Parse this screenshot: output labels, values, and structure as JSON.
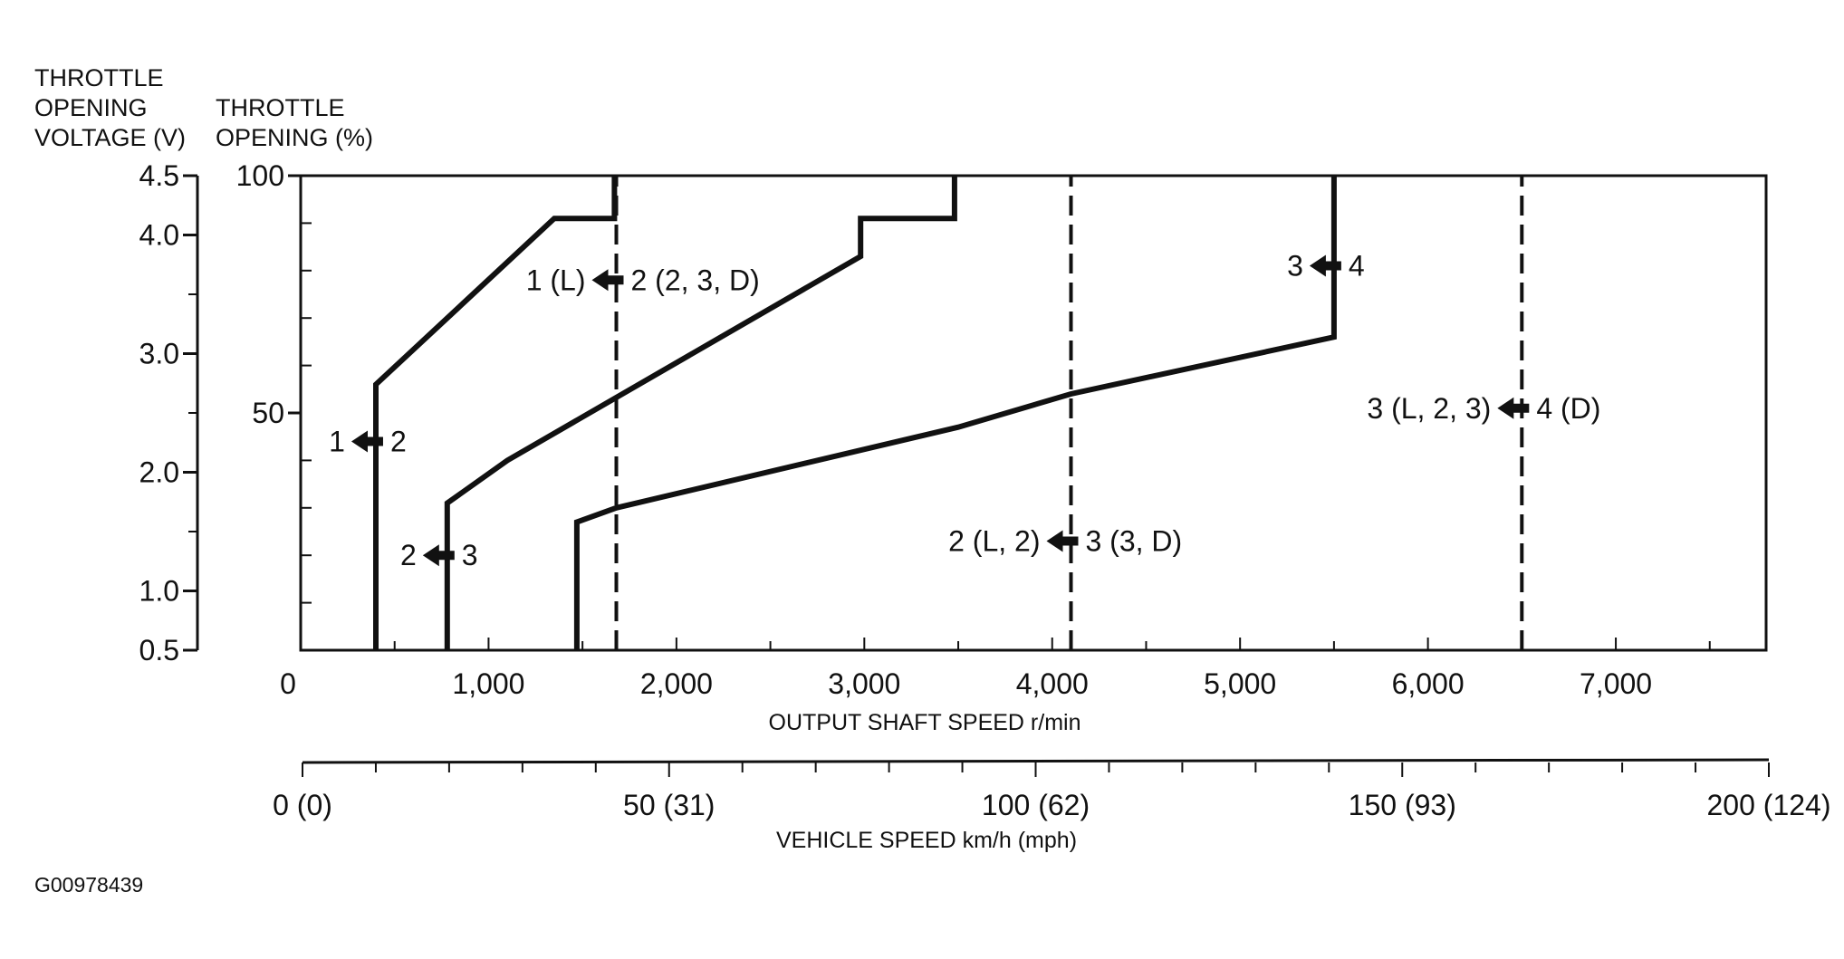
{
  "figure_id": "G00978439",
  "chart_data": {
    "type": "line",
    "title": "",
    "y_axis_left": {
      "title_lines": [
        "THROTTLE",
        "OPENING",
        "VOLTAGE (V)"
      ],
      "ticks": [
        {
          "value": 4.5,
          "label": "4.5"
        },
        {
          "value": 4.0,
          "label": "4.0"
        },
        {
          "value": 3.0,
          "label": "3.0"
        },
        {
          "value": 2.0,
          "label": "2.0"
        },
        {
          "value": 1.0,
          "label": "1.0"
        },
        {
          "value": 0.5,
          "label": "0.5"
        }
      ],
      "minor_ticks": [
        3.5,
        2.5,
        1.5
      ],
      "range": [
        0.5,
        4.5
      ]
    },
    "y_axis_right": {
      "title_lines": [
        "THROTTLE",
        "OPENING (%)"
      ],
      "ticks": [
        {
          "value": 100,
          "label": "100"
        },
        {
          "value": 50,
          "label": "50"
        }
      ],
      "minor_ticks": [
        10,
        20,
        30,
        40,
        60,
        70,
        80,
        90
      ],
      "range": [
        0,
        100
      ]
    },
    "x_axis": {
      "label": "OUTPUT SHAFT SPEED r/min",
      "range": [
        0,
        7800
      ],
      "ticks": [
        {
          "value": 0,
          "label": "0"
        },
        {
          "value": 1000,
          "label": "1,000"
        },
        {
          "value": 2000,
          "label": "2,000"
        },
        {
          "value": 3000,
          "label": "3,000"
        },
        {
          "value": 4000,
          "label": "4,000"
        },
        {
          "value": 5000,
          "label": "5,000"
        },
        {
          "value": 6000,
          "label": "6,000"
        },
        {
          "value": 7000,
          "label": "7,000"
        }
      ],
      "minor_ticks": [
        500,
        1500,
        2500,
        3500,
        4500,
        5500,
        6500,
        7500
      ]
    },
    "x_axis_secondary": {
      "label": "VEHICLE SPEED km/h (mph)",
      "range": [
        0,
        200
      ],
      "ticks": [
        {
          "value": 0,
          "label": "0 (0)"
        },
        {
          "value": 50,
          "label": "50 (31)"
        },
        {
          "value": 100,
          "label": "100 (62)"
        },
        {
          "value": 150,
          "label": "150 (93)"
        },
        {
          "value": 200,
          "label": "200 (124)"
        }
      ],
      "minor_ticks": [
        10,
        20,
        30,
        40,
        60,
        70,
        80,
        90,
        110,
        120,
        130,
        140,
        160,
        170,
        180,
        190
      ]
    },
    "series": [
      {
        "style": "solid",
        "points": [
          [
            400,
            0
          ],
          [
            400,
            56
          ],
          [
            1350,
            91
          ],
          [
            1670,
            91
          ],
          [
            1670,
            100
          ]
        ]
      },
      {
        "style": "solid",
        "points": [
          [
            780,
            0
          ],
          [
            780,
            31
          ],
          [
            1100,
            40
          ],
          [
            2980,
            83
          ],
          [
            2980,
            91
          ],
          [
            3480,
            91
          ],
          [
            3480,
            100
          ]
        ]
      },
      {
        "style": "solid",
        "points": [
          [
            1470,
            0
          ],
          [
            1470,
            27
          ],
          [
            1680,
            30
          ],
          [
            3500,
            47
          ],
          [
            4100,
            54
          ],
          [
            5500,
            66
          ],
          [
            5500,
            100
          ]
        ]
      },
      {
        "style": "dashed",
        "points": [
          [
            1680,
            0
          ],
          [
            1680,
            100
          ]
        ]
      },
      {
        "style": "dashed",
        "points": [
          [
            4100,
            0
          ],
          [
            4100,
            100
          ]
        ]
      },
      {
        "style": "dashed",
        "points": [
          [
            6500,
            0
          ],
          [
            6500,
            100
          ]
        ]
      }
    ],
    "annotations": [
      {
        "left": "1",
        "right": "2",
        "x": 400,
        "y": 44
      },
      {
        "left": "2",
        "right": "3",
        "x": 780,
        "y": 20
      },
      {
        "left": "1 (L)",
        "right": "2 (2, 3, D)",
        "x": 1680,
        "y": 78
      },
      {
        "left": "2 (L, 2)",
        "right": "3 (3, D)",
        "x": 4100,
        "y": 23
      },
      {
        "left": "3",
        "right": "4",
        "x": 5500,
        "y": 81
      },
      {
        "left": "3 (L, 2, 3)",
        "right": "4 (D)",
        "x": 6500,
        "y": 51
      }
    ]
  }
}
